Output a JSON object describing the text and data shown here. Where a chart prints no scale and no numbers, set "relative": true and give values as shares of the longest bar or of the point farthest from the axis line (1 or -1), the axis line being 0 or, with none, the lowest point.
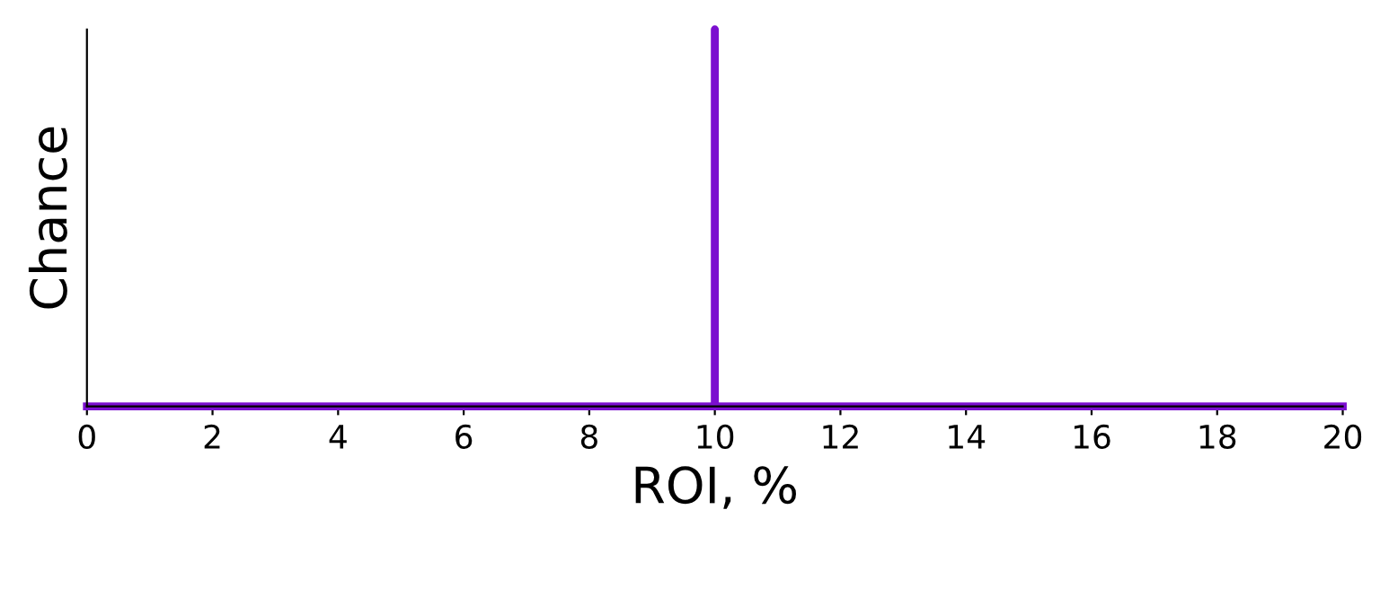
{
  "chart_data": {
    "type": "line",
    "xlabel": "ROI, %",
    "ylabel": "Chance",
    "relative": true,
    "x": [
      0,
      10,
      10,
      10,
      20
    ],
    "values": [
      0,
      0,
      1,
      0,
      0
    ],
    "color": "#7b0fcf",
    "xlim": [
      0,
      20
    ],
    "xticks": [
      0,
      2,
      4,
      6,
      8,
      10,
      12,
      14,
      16,
      18,
      20
    ],
    "tick_labels": "x",
    "grid": false,
    "legend": false
  }
}
